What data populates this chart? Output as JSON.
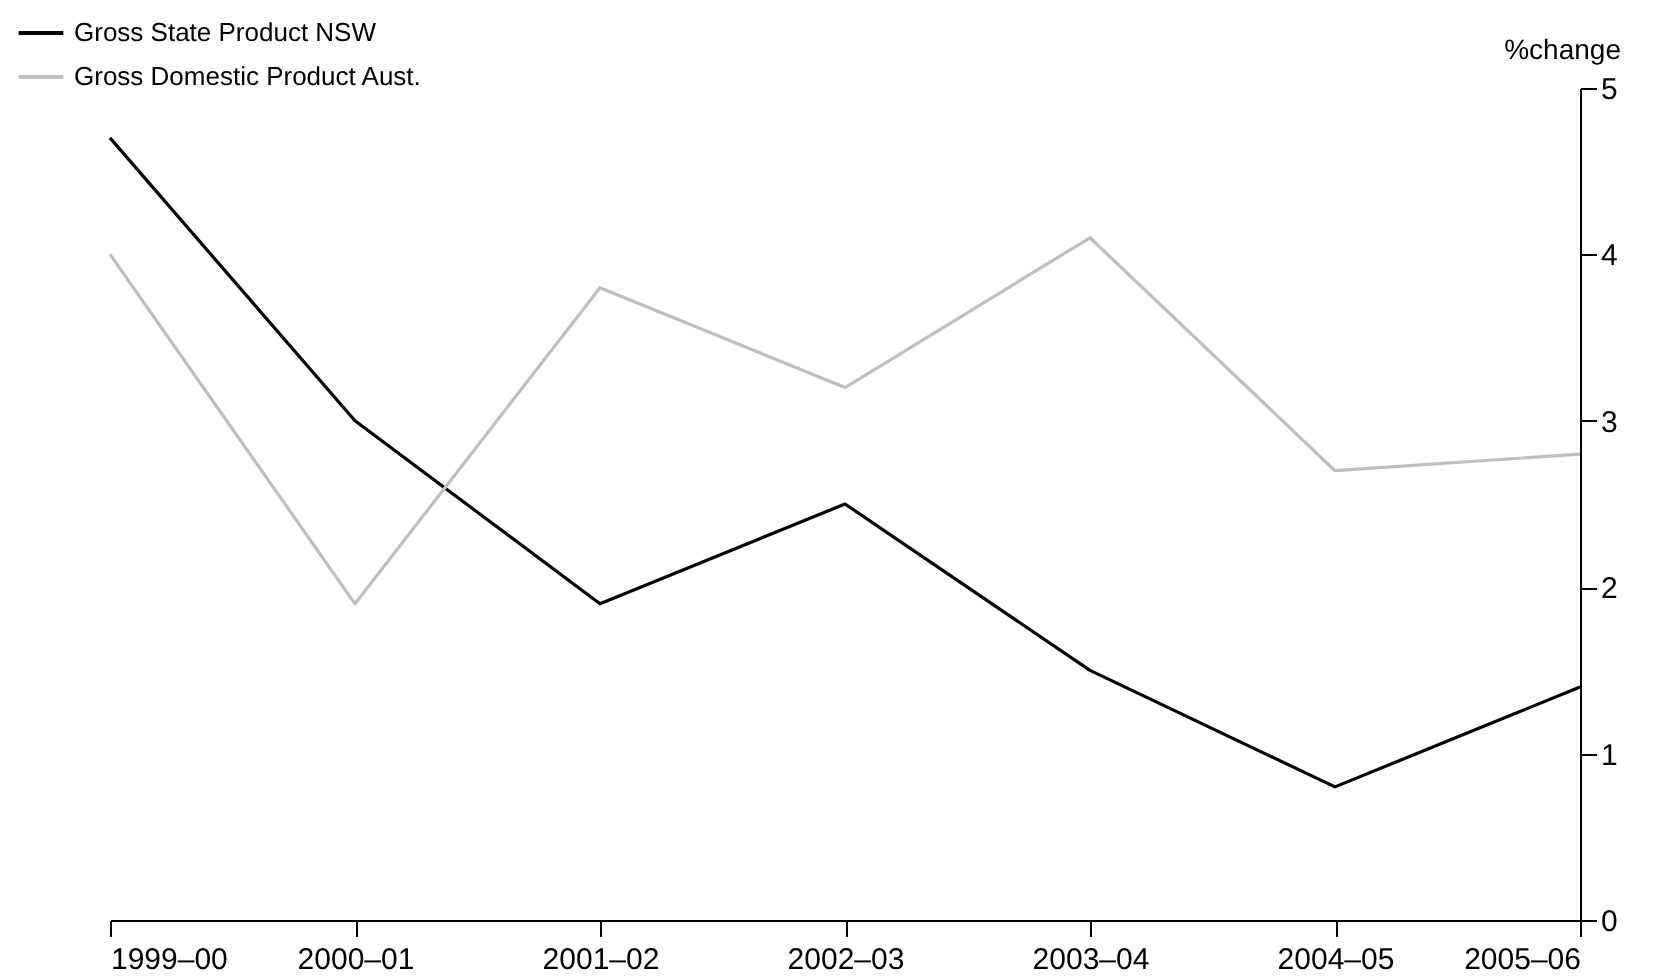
{
  "chart_data": {
    "type": "line",
    "ylabel": "%change",
    "categories": [
      "1999–00",
      "2000–01",
      "2001–02",
      "2002–03",
      "2003–04",
      "2004–05",
      "2005–06"
    ],
    "series": [
      {
        "name": "Gross State Product NSW",
        "color": "#000000",
        "values": [
          4.7,
          3.0,
          1.9,
          2.5,
          1.5,
          0.8,
          1.4
        ]
      },
      {
        "name": "Gross Domestic Product Aust.",
        "color": "#bfbfbf",
        "values": [
          4.0,
          1.9,
          3.8,
          3.2,
          4.1,
          2.7,
          2.8
        ]
      }
    ],
    "ylim": [
      0,
      5
    ],
    "yticks": [
      0,
      1,
      2,
      3,
      4,
      5
    ],
    "grid": false,
    "legend": "top left",
    "marker": "none",
    "line_style": "solid"
  }
}
